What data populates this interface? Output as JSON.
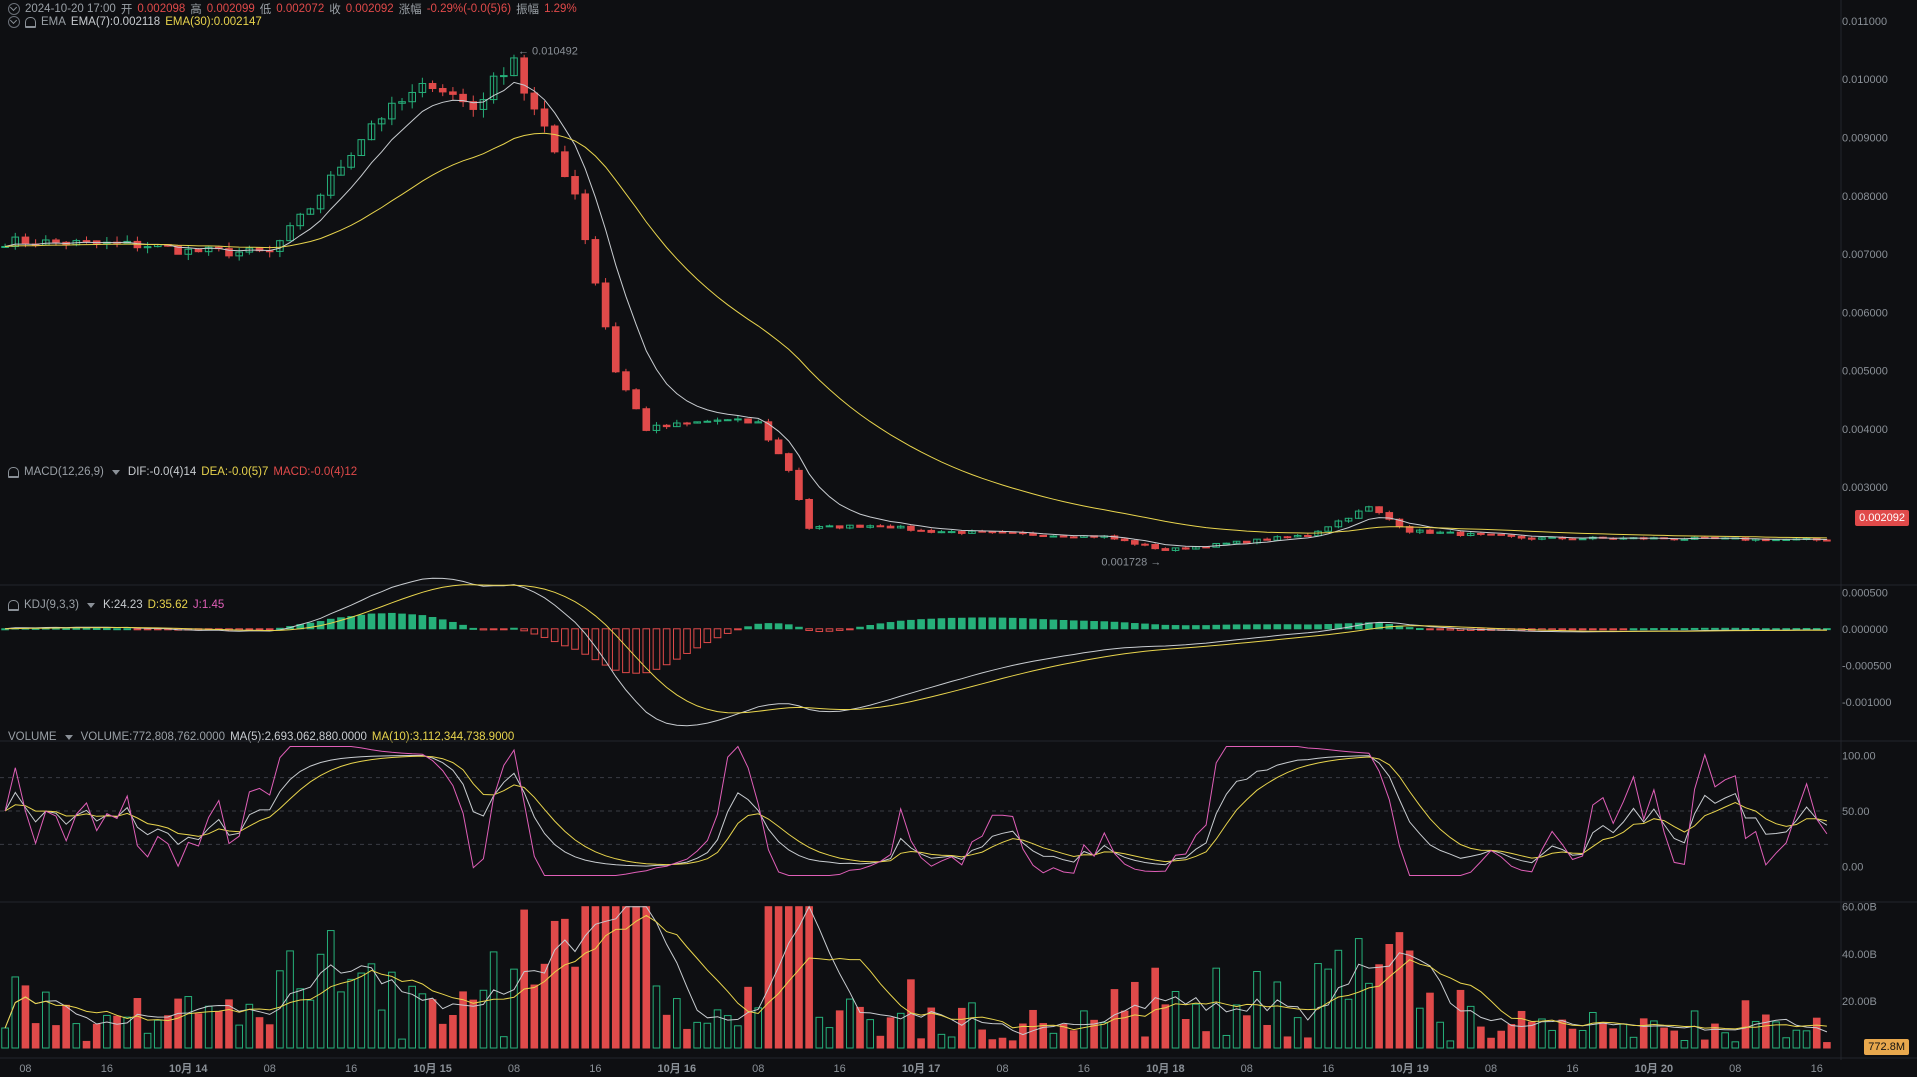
{
  "header": {
    "datetime": "2024-10-20 17:00",
    "open_label": "开",
    "open": "0.002098",
    "high_label": "高",
    "high": "0.002099",
    "low_label": "低",
    "low": "0.002072",
    "close_label": "收",
    "close": "0.002092",
    "change_label": "涨幅",
    "change": "-0.29%(-0.0(5)6)",
    "amplitude_label": "振幅",
    "amplitude": "1.29%"
  },
  "ema_legend": {
    "name": "EMA",
    "ema7": "EMA(7):0.002118",
    "ema30": "EMA(30):0.002147"
  },
  "macd_legend": {
    "name": "MACD(12,26,9)",
    "dif": "DIF:-0.0(4)14",
    "dea": "DEA:-0.0(5)7",
    "macd": "MACD:-0.0(4)12"
  },
  "kdj_legend": {
    "name": "KDJ(9,3,3)",
    "k": "K:24.23",
    "d": "D:35.62",
    "j": "J:1.45"
  },
  "volume_legend": {
    "name": "VOLUME",
    "volume": "VOLUME:772,808,762.0000",
    "ma5": "MA(5):2,693,062,880.0000",
    "ma10": "MA(10):3,112,344,738.9000"
  },
  "price_axis": [
    "0.011000",
    "0.010000",
    "0.009000",
    "0.008000",
    "0.007000",
    "0.006000",
    "0.005000",
    "0.004000",
    "0.003000"
  ],
  "price_tag": "0.002092",
  "macd_axis": [
    "0.000500",
    "0.000000",
    "-0.000500",
    "-0.001000"
  ],
  "kdj_axis": [
    "100.00",
    "50.00",
    "0.00"
  ],
  "volume_axis": [
    "60.00B",
    "40.00B",
    "20.00B"
  ],
  "volume_tag": "772.8M",
  "annotations": {
    "high": "0.010492",
    "low": "0.001728"
  },
  "x_axis": [
    {
      "label": "08",
      "bold": false
    },
    {
      "label": "16",
      "bold": false
    },
    {
      "label": "10月 14",
      "bold": true
    },
    {
      "label": "08",
      "bold": false
    },
    {
      "label": "16",
      "bold": false
    },
    {
      "label": "10月 15",
      "bold": true
    },
    {
      "label": "08",
      "bold": false
    },
    {
      "label": "16",
      "bold": false
    },
    {
      "label": "10月 16",
      "bold": true
    },
    {
      "label": "08",
      "bold": false
    },
    {
      "label": "16",
      "bold": false
    },
    {
      "label": "10月 17",
      "bold": true
    },
    {
      "label": "08",
      "bold": false
    },
    {
      "label": "16",
      "bold": false
    },
    {
      "label": "10月 18",
      "bold": true
    },
    {
      "label": "08",
      "bold": false
    },
    {
      "label": "16",
      "bold": false
    },
    {
      "label": "10月 19",
      "bold": true
    },
    {
      "label": "08",
      "bold": false
    },
    {
      "label": "16",
      "bold": false
    },
    {
      "label": "10月 20",
      "bold": true
    },
    {
      "label": "08",
      "bold": false
    },
    {
      "label": "16",
      "bold": false
    }
  ],
  "colors": {
    "up": "#26b07a",
    "down": "#e04a4a",
    "ema7": "#c8ccd0",
    "ema30": "#e8d44d",
    "kdj_j": "#e05fb8",
    "bg": "#0e0f12"
  },
  "chart_data": {
    "type": "candlestick",
    "interval": "hourly",
    "start": "2024-10-13 06:00",
    "end": "2024-10-20 17:00",
    "price_keypoints": [
      [
        "2024-10-13 06:00",
        0.00722
      ],
      [
        "2024-10-13 20:00",
        0.00715
      ],
      [
        "2024-10-14 00:00",
        0.00705
      ],
      [
        "2024-10-14 08:00",
        0.00702
      ],
      [
        "2024-10-14 12:00",
        0.0078
      ],
      [
        "2024-10-14 18:00",
        0.00925
      ],
      [
        "2024-10-15 00:00",
        0.00995
      ],
      [
        "2024-10-15 04:00",
        0.0095
      ],
      [
        "2024-10-15 08:00",
        0.0104
      ],
      [
        "2024-10-15 09:00",
        0.0098
      ],
      [
        "2024-10-15 11:00",
        0.0091
      ],
      [
        "2024-10-15 14:00",
        0.00805
      ],
      [
        "2024-10-15 18:00",
        0.005
      ],
      [
        "2024-10-15 21:00",
        0.004
      ],
      [
        "2024-10-16 04:00",
        0.00415
      ],
      [
        "2024-10-16 08:00",
        0.0041
      ],
      [
        "2024-10-16 11:00",
        0.0033
      ],
      [
        "2024-10-16 13:00",
        0.0023
      ],
      [
        "2024-10-16 20:00",
        0.00235
      ],
      [
        "2024-10-17 00:00",
        0.00225
      ],
      [
        "2024-10-17 12:00",
        0.00218
      ],
      [
        "2024-10-17 18:00",
        0.00215
      ],
      [
        "2024-10-18 00:00",
        0.00192
      ],
      [
        "2024-10-18 14:00",
        0.00218
      ],
      [
        "2024-10-18 20:00",
        0.00265
      ],
      [
        "2024-10-19 00:00",
        0.00225
      ],
      [
        "2024-10-19 12:00",
        0.00212
      ],
      [
        "2024-10-20 00:00",
        0.00212
      ],
      [
        "2024-10-20 17:00",
        0.002092
      ]
    ],
    "extremes": {
      "high": 0.010492,
      "low": 0.001728
    },
    "ema7_last": 0.002118,
    "ema30_last": 0.002147,
    "ylim": [
      0.00175,
      0.01105
    ],
    "macd": {
      "dif": -1.4e-05,
      "dea": -7e-06,
      "hist": -1.2e-05,
      "ylim": [
        -0.00125,
        0.0006
      ]
    },
    "kdj": {
      "k": 24.23,
      "d": 35.62,
      "j": 1.45,
      "ylim": [
        -12,
        112
      ]
    },
    "volume": {
      "last": 772808762,
      "ma5": 2693062880,
      "ma10": 3112344738.9,
      "ylim": [
        0,
        62000000000
      ],
      "peak_volumes_B": [
        52,
        60,
        40,
        31
      ]
    }
  }
}
